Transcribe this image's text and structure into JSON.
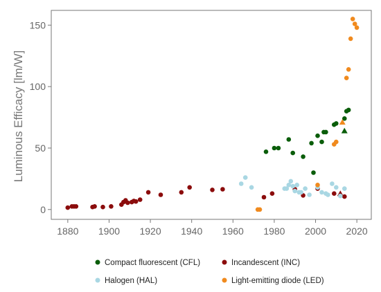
{
  "chart_data": {
    "type": "scatter",
    "title": "",
    "xlabel": "",
    "ylabel": "Luminous Efficacy [lm/W]",
    "xlim": [
      1872,
      2027
    ],
    "ylim": [
      -8,
      162
    ],
    "xticks": [
      1880,
      1900,
      1920,
      1940,
      1960,
      1980,
      2000,
      2020
    ],
    "yticks": [
      0,
      50,
      100,
      150
    ],
    "grid": false,
    "legend_position": "bottom",
    "series": [
      {
        "name": "Compact fluorescent (CFL)",
        "color": "#0a5d0a",
        "points": [
          [
            1976,
            47
          ],
          [
            1980,
            50
          ],
          [
            1982,
            50
          ],
          [
            1987,
            57
          ],
          [
            1989,
            46
          ],
          [
            1994,
            43
          ],
          [
            1998,
            54
          ],
          [
            1999,
            30
          ],
          [
            2001,
            60
          ],
          [
            2003,
            55
          ],
          [
            2004,
            63
          ],
          [
            2005,
            63
          ],
          [
            2009,
            69
          ],
          [
            2010,
            70
          ],
          [
            2014,
            74
          ],
          [
            2015,
            80
          ],
          [
            2016,
            81
          ]
        ],
        "triangles": [
          [
            2014,
            64
          ]
        ]
      },
      {
        "name": "Incandescent (INC)",
        "color": "#8b0c0c",
        "points": [
          [
            1880,
            1.5
          ],
          [
            1882,
            2.5
          ],
          [
            1883,
            2.5
          ],
          [
            1884,
            2.5
          ],
          [
            1892,
            2
          ],
          [
            1893,
            2.5
          ],
          [
            1897,
            2
          ],
          [
            1901,
            2.5
          ],
          [
            1906,
            4
          ],
          [
            1907,
            6
          ],
          [
            1908,
            7.5
          ],
          [
            1909,
            5.5
          ],
          [
            1911,
            6
          ],
          [
            1912,
            7
          ],
          [
            1913,
            6.5
          ],
          [
            1915,
            8
          ],
          [
            1919,
            14
          ],
          [
            1925,
            12
          ],
          [
            1935,
            14
          ],
          [
            1939,
            18
          ],
          [
            1950,
            16
          ],
          [
            1955,
            16.5
          ],
          [
            1975,
            10
          ],
          [
            1979,
            13
          ],
          [
            1990,
            16.5
          ],
          [
            1994,
            11.5
          ],
          [
            2001,
            17
          ],
          [
            2009,
            13
          ],
          [
            2014,
            10.5
          ]
        ],
        "triangles": [
          [
            2012,
            13
          ]
        ]
      },
      {
        "name": "Halogen (HAL)",
        "color": "#a9d7e3",
        "points": [
          [
            1964,
            21
          ],
          [
            1966,
            26
          ],
          [
            1969,
            18
          ],
          [
            1985,
            17
          ],
          [
            1986,
            17
          ],
          [
            1987,
            20
          ],
          [
            1988,
            23
          ],
          [
            1989,
            19
          ],
          [
            1990,
            15
          ],
          [
            1991,
            20
          ],
          [
            1992,
            14
          ],
          [
            1993,
            14
          ],
          [
            1995,
            17
          ],
          [
            1997,
            12
          ],
          [
            2001,
            18
          ],
          [
            2003,
            14
          ],
          [
            2005,
            13
          ],
          [
            2006,
            12
          ],
          [
            2008,
            21
          ],
          [
            2010,
            18
          ],
          [
            2012,
            11
          ],
          [
            2014,
            17
          ]
        ],
        "triangles": []
      },
      {
        "name": "Light-emitting diode (LED)",
        "color": "#f08a1e",
        "points": [
          [
            1972,
            0
          ],
          [
            1973,
            0
          ],
          [
            2001,
            20
          ],
          [
            2009,
            53
          ],
          [
            2010,
            55
          ],
          [
            2015,
            107
          ],
          [
            2016,
            114
          ],
          [
            2017,
            139
          ],
          [
            2018,
            155
          ],
          [
            2019,
            151
          ],
          [
            2020,
            148
          ]
        ],
        "triangles": [
          [
            2013,
            71
          ]
        ]
      }
    ]
  }
}
